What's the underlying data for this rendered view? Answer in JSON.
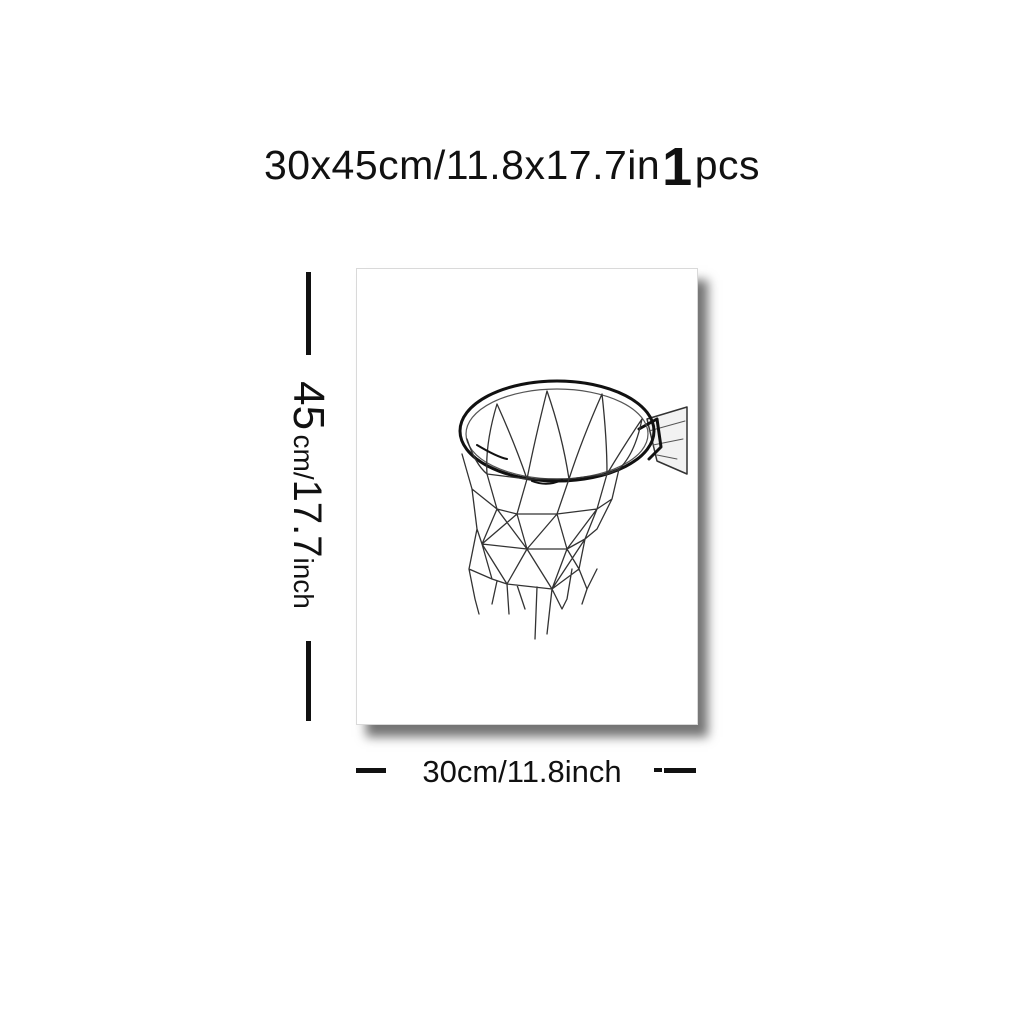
{
  "headline": {
    "size_text": "30x45cm/11.8x17.7in",
    "quantity": "1",
    "unit": "pcs"
  },
  "height_dimension": {
    "number": "45",
    "cm_unit": "cm/",
    "inches": "17.7",
    "inch_unit": "inch"
  },
  "width_dimension": {
    "label": "30cm/11.8inch"
  },
  "artwork": {
    "subject": "basketball-hoop-with-net",
    "colors": {
      "stroke": "#222222",
      "background": "#ffffff",
      "shadow": "#555555"
    }
  }
}
